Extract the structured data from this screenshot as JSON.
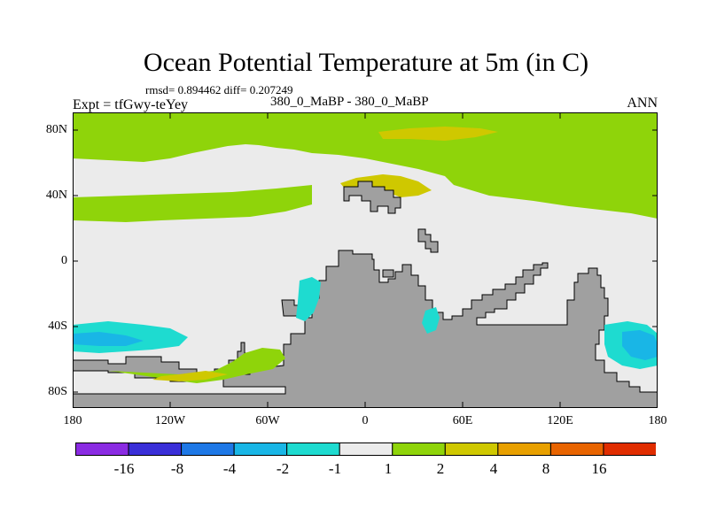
{
  "title": "Ocean Potential Temperature at 5m (in C)",
  "stats": "rmsd= 0.894462 diff= 0.207249",
  "experiment": "Expt = tfGwy-teYey",
  "subtitle": "380_0_MaBP - 380_0_MaBP",
  "season": "ANN",
  "lat_labels": [
    "80N",
    "40N",
    "0",
    "40S",
    "80S"
  ],
  "lon_labels": [
    "180",
    "120W",
    "60W",
    "0",
    "60E",
    "120E",
    "180"
  ],
  "colorbar": {
    "colors": [
      "#8a2be2",
      "#3a2fd8",
      "#1e78e6",
      "#19b6e6",
      "#1edbd0",
      "#ebebeb",
      "#8fd40a",
      "#cfc800",
      "#e8a000",
      "#e86400",
      "#e02d00"
    ],
    "labels": [
      "-16",
      "-8",
      "-4",
      "-2",
      "-1",
      "1",
      "2",
      "4",
      "8",
      "16"
    ]
  },
  "colors": {
    "land": "#a0a0a0",
    "background_anomaly": "#ebebeb"
  }
}
